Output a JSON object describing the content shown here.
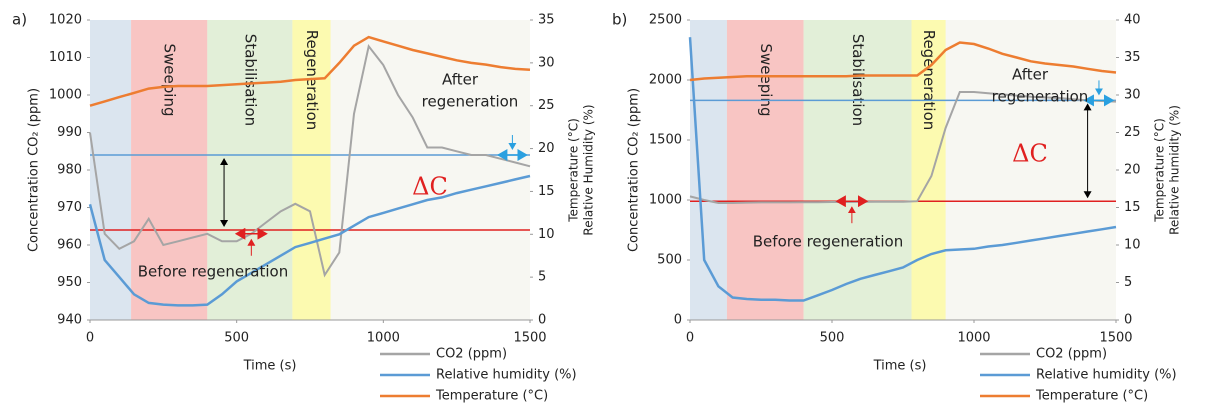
{
  "chart_data": [
    {
      "type": "line",
      "panel_label": "a)",
      "x_label": "Time (s)",
      "y_label": "Concentration CO₂ (ppm)",
      "y2_label": [
        "Temperature (°C)",
        "Relative Humidity (%)"
      ],
      "x": [
        0,
        50,
        100,
        150,
        200,
        250,
        300,
        350,
        400,
        450,
        500,
        550,
        600,
        650,
        700,
        750,
        800,
        850,
        900,
        950,
        1000,
        1050,
        1100,
        1150,
        1200,
        1250,
        1300,
        1350,
        1400,
        1450,
        1500
      ],
      "series": [
        {
          "name": "CO2 (ppm)",
          "color": "#a5a5a5",
          "values": [
            990,
            963,
            959,
            961,
            967,
            960,
            961,
            962,
            963,
            961,
            961,
            963,
            966,
            969,
            971,
            969,
            952,
            958,
            995,
            1013,
            1008,
            1000,
            994,
            986,
            986,
            985,
            984,
            984,
            983,
            982,
            981
          ]
        },
        {
          "name": "Relative humidity (%)",
          "color": "#5b9bd5",
          "axis": "y2",
          "values": [
            13.5,
            7,
            5,
            3,
            2,
            1.8,
            1.7,
            1.7,
            1.8,
            3,
            4.5,
            5.5,
            6.5,
            7.5,
            8.5,
            9,
            9.5,
            10,
            11,
            12,
            12.5,
            13,
            13.5,
            14,
            14.3,
            14.8,
            15.2,
            15.6,
            16,
            16.4,
            16.8
          ]
        },
        {
          "name": "Temperature (°C)",
          "color": "#ed7d31",
          "axis": "y2",
          "values": [
            25,
            25.5,
            26,
            26.5,
            27,
            27.2,
            27.3,
            27.3,
            27.3,
            27.4,
            27.5,
            27.6,
            27.7,
            27.8,
            28,
            28.1,
            28.2,
            30,
            32,
            33,
            32.5,
            32,
            31.5,
            31.1,
            30.7,
            30.3,
            30,
            29.8,
            29.5,
            29.3,
            29.2
          ]
        }
      ],
      "phases": [
        {
          "start": 0,
          "end": 140,
          "color": "#dbe5ef"
        },
        {
          "label": "Sweeping",
          "start": 140,
          "end": 400,
          "color": "#f8c5c3"
        },
        {
          "label": "Stabilisation",
          "start": 400,
          "end": 690,
          "color": "#e2efd8"
        },
        {
          "label": "Regeneration",
          "start": 690,
          "end": 820,
          "color": "#fcfab0"
        }
      ],
      "hlines": [
        {
          "value": 984,
          "color": "#5b9bd5"
        },
        {
          "value": 964,
          "color": "#e02020"
        }
      ],
      "delta_label": "ΔC",
      "before_label": "Before regeneration",
      "after_label": [
        "After",
        "regeneration"
      ],
      "xlim": [
        0,
        1500
      ],
      "xticks": [
        0,
        500,
        1000,
        1500
      ],
      "ylim": [
        940,
        1020
      ],
      "yticks": [
        940,
        950,
        960,
        970,
        980,
        990,
        1000,
        1010,
        1020
      ],
      "y2lim": [
        0,
        35
      ],
      "y2ticks": [
        0,
        5,
        10,
        15,
        20,
        25,
        30,
        35
      ]
    },
    {
      "type": "line",
      "panel_label": "b)",
      "x_label": "Time (s)",
      "y_label": "Concentration CO₂ (ppm)",
      "y2_label": [
        "Temperature (°C)",
        "Relative humidity (%)"
      ],
      "x": [
        0,
        50,
        100,
        150,
        200,
        250,
        300,
        350,
        400,
        450,
        500,
        550,
        600,
        650,
        700,
        750,
        800,
        850,
        900,
        950,
        1000,
        1050,
        1100,
        1150,
        1200,
        1250,
        1300,
        1350,
        1400,
        1450,
        1500
      ],
      "series": [
        {
          "name": "CO2 (ppm)",
          "color": "#a5a5a5",
          "values": [
            1030,
            1000,
            975,
            975,
            978,
            980,
            980,
            980,
            982,
            982,
            983,
            983,
            984,
            985,
            985,
            985,
            990,
            1200,
            1600,
            1900,
            1900,
            1890,
            1880,
            1870,
            1860,
            1855,
            1850,
            1840,
            1830,
            1825,
            1820
          ]
        },
        {
          "name": "Relative humidity (%)",
          "color": "#5b9bd5",
          "axis": "y2",
          "values": [
            37.7,
            8,
            4.5,
            3,
            2.8,
            2.7,
            2.7,
            2.6,
            2.6,
            3.3,
            4,
            4.8,
            5.5,
            6,
            6.5,
            7,
            8,
            8.8,
            9.3,
            9.4,
            9.5,
            9.8,
            10,
            10.3,
            10.6,
            10.9,
            11.2,
            11.5,
            11.8,
            12.1,
            12.4
          ]
        },
        {
          "name": "Temperature (°C)",
          "color": "#ed7d31",
          "axis": "y2",
          "values": [
            32,
            32.2,
            32.3,
            32.4,
            32.5,
            32.5,
            32.5,
            32.5,
            32.5,
            32.5,
            32.5,
            32.5,
            32.6,
            32.6,
            32.6,
            32.6,
            32.6,
            34,
            36,
            37,
            36.8,
            36.2,
            35.5,
            35,
            34.5,
            34.2,
            34,
            33.8,
            33.5,
            33.2,
            33
          ]
        }
      ],
      "phases": [
        {
          "start": 0,
          "end": 130,
          "color": "#dbe5ef"
        },
        {
          "label": "Sweeping",
          "start": 130,
          "end": 400,
          "color": "#f8c5c3"
        },
        {
          "label": "Stabilisation",
          "start": 400,
          "end": 780,
          "color": "#e2efd8"
        },
        {
          "label": "Regeneration",
          "start": 780,
          "end": 900,
          "color": "#fcfab0"
        }
      ],
      "hlines": [
        {
          "value": 1830,
          "color": "#5b9bd5"
        },
        {
          "value": 990,
          "color": "#e02020"
        }
      ],
      "delta_label": "ΔC",
      "before_label": "Before regeneration",
      "after_label": [
        "After",
        "regeneration"
      ],
      "xlim": [
        0,
        1500
      ],
      "xticks": [
        0,
        500,
        1000,
        1500
      ],
      "ylim": [
        0,
        2500
      ],
      "yticks": [
        0,
        500,
        1000,
        1500,
        2000,
        2500
      ],
      "y2lim": [
        0,
        40
      ],
      "y2ticks": [
        0,
        5,
        10,
        15,
        20,
        25,
        30,
        35,
        40
      ]
    }
  ]
}
